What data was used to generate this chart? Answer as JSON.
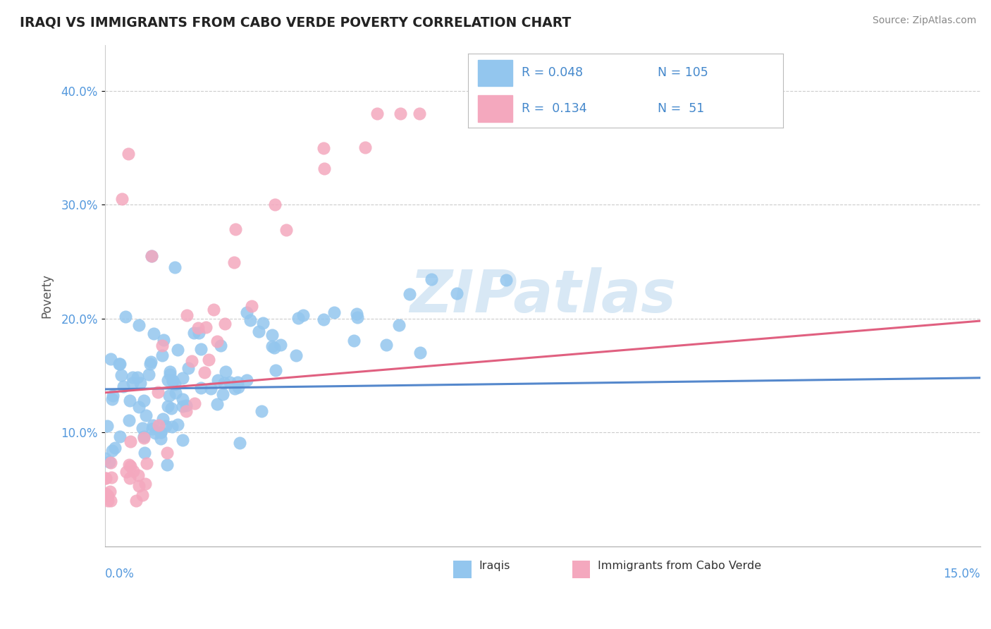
{
  "title": "IRAQI VS IMMIGRANTS FROM CABO VERDE POVERTY CORRELATION CHART",
  "source": "Source: ZipAtlas.com",
  "ylabel": "Poverty",
  "xlim": [
    0.0,
    0.15
  ],
  "ylim": [
    0.0,
    0.44
  ],
  "yticks": [
    0.1,
    0.2,
    0.3,
    0.4
  ],
  "ytick_labels": [
    "10.0%",
    "20.0%",
    "30.0%",
    "40.0%"
  ],
  "blue_color": "#93C6EE",
  "pink_color": "#F4A8BE",
  "blue_line_color": "#5588CC",
  "pink_line_color": "#E06080",
  "blue_R": 0.048,
  "blue_N": 105,
  "pink_R": 0.134,
  "pink_N": 51,
  "blue_trend_x0": 0.0,
  "blue_trend_y0": 0.138,
  "blue_trend_x1": 0.15,
  "blue_trend_y1": 0.148,
  "pink_trend_x0": 0.0,
  "pink_trend_y0": 0.135,
  "pink_trend_x1": 0.15,
  "pink_trend_y1": 0.198,
  "watermark_text": "ZIPatlas",
  "watermark_color": "#D8E8F5",
  "legend_R1": "R = 0.048",
  "legend_N1": "N = 105",
  "legend_R2": "R =  0.134",
  "legend_N2": "N =  51",
  "bottom_label1": "Iraqis",
  "bottom_label2": "Immigrants from Cabo Verde"
}
